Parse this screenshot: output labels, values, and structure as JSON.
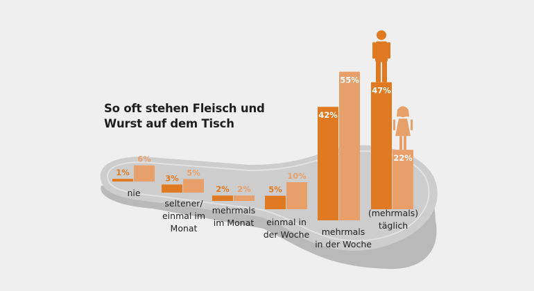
{
  "title_lines": [
    "So oft stehen Fleisch und",
    "Wurst auf dem Tisch"
  ],
  "colors": {
    "men": "#e07a22",
    "women": "#e8a06a",
    "platform": "#c8c8c8",
    "platform_rim": "#b0b0b0",
    "platform_top": "#d9d9d9",
    "text": "#222222",
    "background": "#efefef"
  },
  "icons": [
    "man-figure-icon",
    "woman-figure-icon"
  ],
  "chart_data": {
    "type": "bar",
    "title": "So oft stehen Fleisch und Wurst auf dem Tisch",
    "categories": [
      {
        "label_lines": [
          "nie"
        ]
      },
      {
        "label_lines": [
          "seltener/",
          "einmal im",
          "Monat"
        ]
      },
      {
        "label_lines": [
          "mehrmals",
          "im Monat"
        ]
      },
      {
        "label_lines": [
          "einmal in",
          "der Woche"
        ]
      },
      {
        "label_lines": [
          "mehrmals",
          "in der Woche"
        ]
      },
      {
        "label_lines": [
          "(mehrmals)",
          "täglich"
        ]
      }
    ],
    "series": [
      {
        "color": "#e07a22",
        "values": [
          1,
          3,
          2,
          5,
          42,
          47
        ],
        "labels": [
          "1%",
          "3%",
          "2%",
          "5%",
          "42%",
          "47%"
        ]
      },
      {
        "color": "#e8a06a",
        "values": [
          6,
          5,
          2,
          10,
          55,
          22
        ],
        "labels": [
          "6%",
          "5%",
          "2%",
          "10%",
          "55%",
          "22%"
        ]
      }
    ],
    "unit": "%",
    "legend": "none",
    "grid": false
  }
}
